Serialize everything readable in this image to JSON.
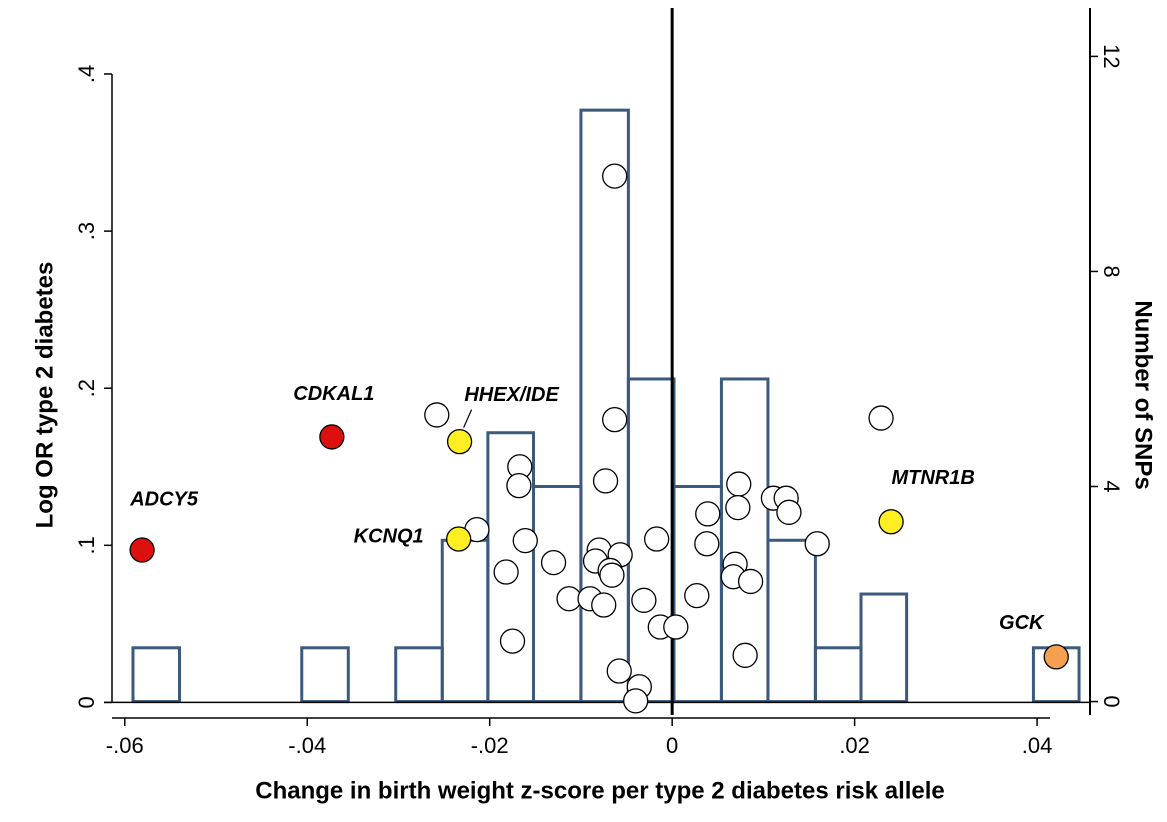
{
  "chart_data": {
    "type": "scatter",
    "xlabel": "Change in birth weight z-score per type 2 diabetes risk allele",
    "ylabel": "Log OR type 2 diabetes",
    "y2label": "Number of SNPs",
    "xlim": [
      -0.0614,
      0.0458
    ],
    "xticks": [
      {
        "value": -0.06,
        "label": "-.06"
      },
      {
        "value": -0.04,
        "label": "-.04"
      },
      {
        "value": -0.02,
        "label": "-.02"
      },
      0,
      {
        "value": 0.02,
        "label": ".02"
      },
      {
        "value": 0.04,
        "label": ".04"
      }
    ],
    "ylim": [
      -0.008,
      0.442
    ],
    "yticks": [
      0,
      {
        "value": 0.1,
        "label": ".1"
      },
      {
        "value": 0.2,
        "label": ".2"
      },
      {
        "value": 0.3,
        "label": ".3"
      },
      {
        "value": 0.4,
        "label": ".4"
      }
    ],
    "y2lim": [
      -0.25,
      12.9
    ],
    "y2ticks": [
      0,
      4,
      8,
      12
    ],
    "reference_x": 0,
    "histogram": {
      "axis": "y2",
      "color": "#3b5a7e",
      "bins": [
        -0.0591,
        -0.054,
        -0.0406,
        -0.0355,
        -0.0303,
        -0.0252,
        -0.0202,
        -0.0152,
        -0.01,
        -0.0048,
        0.0002,
        0.0054,
        0.0105,
        0.0157,
        0.0207,
        0.0257,
        0.0396,
        0.0446
      ],
      "counts": [
        1,
        0,
        1,
        0,
        1,
        3,
        5,
        4,
        11,
        6,
        4,
        6,
        3,
        1,
        2,
        0,
        1
      ]
    },
    "points": {
      "color": "#ffffff",
      "x": [
        -0.0063,
        -0.0258,
        -0.0063,
        0.0229,
        -0.0167,
        -0.0168,
        -0.0073,
        0.0073,
        0.0111,
        0.0125,
        0.0072,
        0.0128,
        0.0039,
        -0.0161,
        -0.0214,
        0.0038,
        0.0159,
        -0.0017,
        -0.008,
        -0.0057,
        -0.0084,
        -0.0068,
        -0.0182,
        -0.013,
        0.0069,
        -0.0066,
        0.0067,
        0.0086,
        -0.0113,
        -0.009,
        -0.0075,
        -0.0031,
        0.0027,
        -0.0175,
        -0.0013,
        0.0004,
        0.008,
        -0.0058,
        -0.0036,
        -0.004
      ],
      "y": [
        0.335,
        0.183,
        0.18,
        0.181,
        0.15,
        0.138,
        0.141,
        0.139,
        0.13,
        0.13,
        0.124,
        0.121,
        0.12,
        0.103,
        0.11,
        0.101,
        0.101,
        0.104,
        0.097,
        0.094,
        0.09,
        0.084,
        0.083,
        0.089,
        0.088,
        0.081,
        0.08,
        0.077,
        0.066,
        0.066,
        0.062,
        0.065,
        0.068,
        0.039,
        0.048,
        0.048,
        0.03,
        0.02,
        0.01,
        0.001
      ]
    },
    "highlighted": [
      {
        "label": "ADCY5",
        "x": -0.0581,
        "y": 0.097,
        "color": "#dd1010"
      },
      {
        "label": "CDKAL1",
        "x": -0.0373,
        "y": 0.169,
        "color": "#dd1010"
      },
      {
        "label": "HHEX/IDE",
        "x": -0.0233,
        "y": 0.166,
        "color": "#ffee22"
      },
      {
        "label": "KCNQ1",
        "x": -0.0234,
        "y": 0.104,
        "color": "#ffee22"
      },
      {
        "label": "MTNR1B",
        "x": 0.024,
        "y": 0.115,
        "color": "#ffee22"
      },
      {
        "label": "GCK",
        "x": 0.0421,
        "y": 0.029,
        "color": "#f4a050"
      }
    ]
  }
}
